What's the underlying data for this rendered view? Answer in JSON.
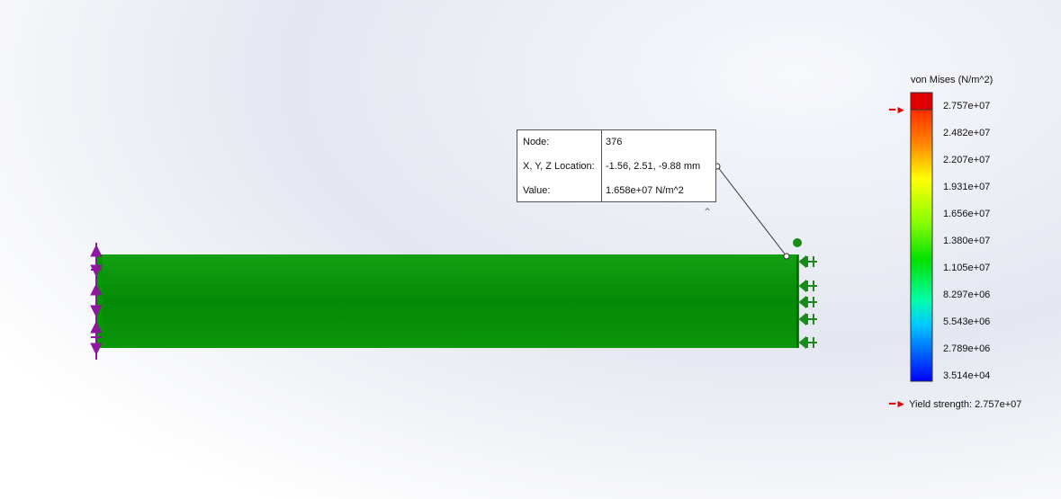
{
  "probe": {
    "node_label": "Node:",
    "node_value": "376",
    "location_label": "X, Y, Z Location:",
    "location_value": "-1.56, 2.51, -9.88 mm",
    "value_label": "Value:",
    "value_value": "1.658e+07 N/m^2"
  },
  "legend": {
    "title": "von Mises (N/m^2)",
    "ticks": [
      "2.757e+07",
      "2.482e+07",
      "2.207e+07",
      "1.931e+07",
      "1.656e+07",
      "1.380e+07",
      "1.105e+07",
      "8.297e+06",
      "5.543e+06",
      "2.789e+06",
      "3.514e+04"
    ],
    "max_color": "#e00000",
    "yield_label": "Yield strength: 2.757e+07"
  },
  "icons": {
    "collapse": "chevron-up-icon",
    "fixture": "fixed-restraint-icon",
    "load": "force-arrow-icon"
  },
  "colors": {
    "beam": "#0a8f0a",
    "fixture": "#8a1a9a",
    "load": "#1a8a1a",
    "yield_arrow": "#e00000"
  }
}
